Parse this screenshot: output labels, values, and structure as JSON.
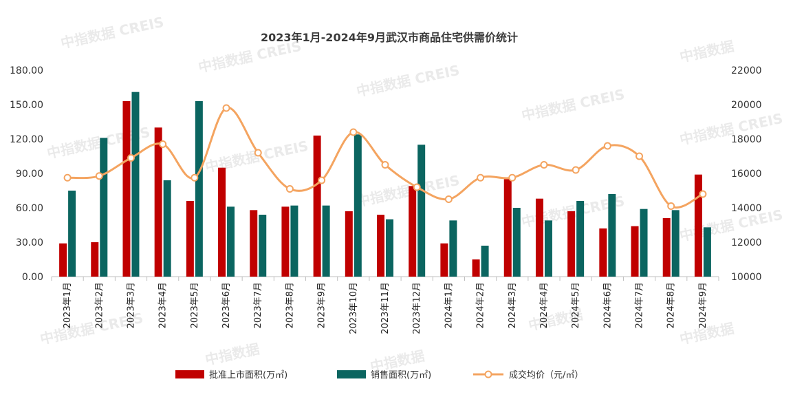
{
  "chart_data": {
    "type": "bar",
    "title": "2023年1月-2024年9月武汉市商品住宅供需价统计",
    "categories": [
      "2023年1月",
      "2023年2月",
      "2023年3月",
      "2023年4月",
      "2023年5月",
      "2023年6月",
      "2023年7月",
      "2023年8月",
      "2023年9月",
      "2023年10月",
      "2023年11月",
      "2023年12月",
      "2024年1月",
      "2024年2月",
      "2024年3月",
      "2024年4月",
      "2024年5月",
      "2024年6月",
      "2024年7月",
      "2024年8月",
      "2024年9月"
    ],
    "series": [
      {
        "name": "批准上市面积(万㎡)",
        "type": "bar",
        "axis": "left",
        "color": "#c00000",
        "values": [
          29,
          30,
          153,
          130,
          66,
          95,
          58,
          61,
          123,
          57,
          54,
          79,
          29,
          15,
          85,
          68,
          57,
          42,
          44,
          51,
          89
        ]
      },
      {
        "name": "销售面积(万㎡)",
        "type": "bar",
        "axis": "left",
        "color": "#0b6560",
        "values": [
          75,
          121,
          161,
          84,
          153,
          61,
          54,
          62,
          62,
          124,
          50,
          115,
          49,
          27,
          60,
          49,
          66,
          72,
          59,
          58,
          43
        ]
      },
      {
        "name": "成交均价（元/㎡）",
        "type": "line",
        "axis": "right",
        "color": "#f4a460",
        "values": [
          15750,
          15850,
          16900,
          17700,
          15750,
          19800,
          17200,
          15100,
          15600,
          18400,
          16500,
          15200,
          14500,
          15750,
          15750,
          16500,
          16200,
          17600,
          17000,
          14100,
          14800
        ]
      }
    ],
    "yleft": {
      "ylim": [
        0,
        180
      ],
      "ticks": [
        "0.00",
        "30.00",
        "60.00",
        "90.00",
        "120.00",
        "150.00",
        "180.00"
      ]
    },
    "yright": {
      "ylim": [
        10000,
        22000
      ],
      "ticks": [
        "10000",
        "12000",
        "14000",
        "16000",
        "18000",
        "20000",
        "22000"
      ]
    },
    "legend": "bottom",
    "grid": false
  },
  "watermarks": [
    "中指数据 CREIS",
    "中指数据 CREIS",
    "中指数据 CREIS",
    "中指数据 CREIS",
    "中指数据 CREIS",
    "中指数据 CREIS",
    "中指数据 CREIS",
    "中指数据 CREIS",
    "中指数据 CREIS",
    "中指数据 CREIS",
    "中指数据 CREIS",
    "中指数据",
    "中指数据",
    "中指数据",
    "中指数据",
    "中指数据"
  ]
}
